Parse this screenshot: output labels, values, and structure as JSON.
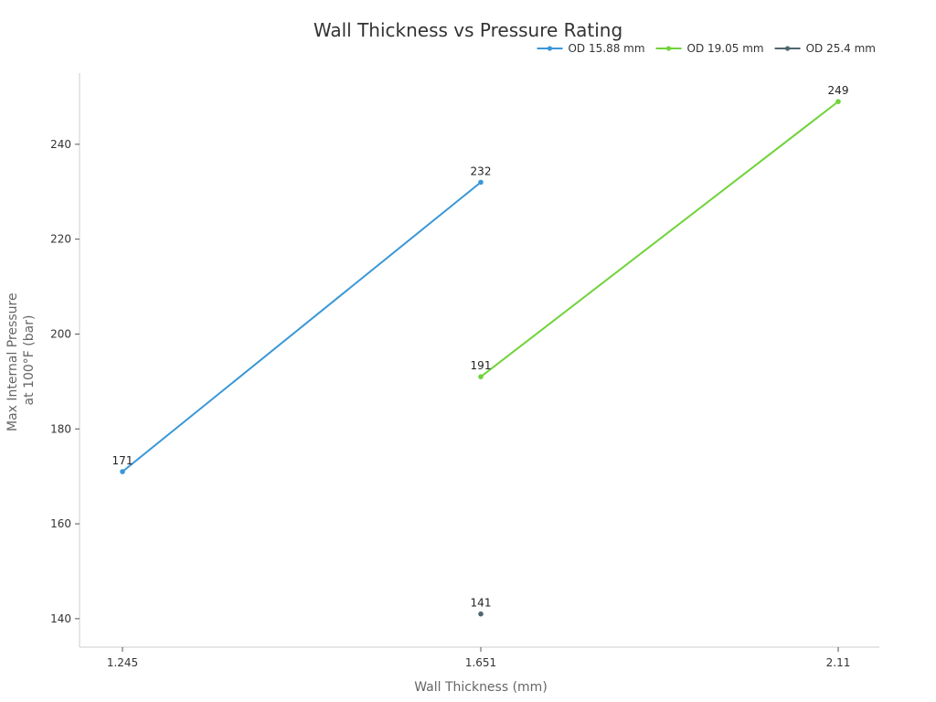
{
  "chart_data": {
    "type": "line",
    "title": "Wall Thickness vs Pressure Rating",
    "xlabel": "Wall Thickness (mm)",
    "ylabel": [
      "Max Internal Pressure",
      "at 100°F (bar)"
    ],
    "categories": [
      "1.245",
      "1.651",
      "2.11"
    ],
    "ylim": [
      134,
      255
    ],
    "yticks": [
      140,
      160,
      180,
      200,
      220,
      240
    ],
    "grid": false,
    "legend_position": "top-right",
    "series": [
      {
        "name": "OD 15.88 mm",
        "color": "#3a97d8",
        "values": [
          171,
          232,
          null
        ]
      },
      {
        "name": "OD 19.05 mm",
        "color": "#6fd33a",
        "values": [
          null,
          191,
          249
        ]
      },
      {
        "name": "OD 25.4 mm",
        "color": "#4f6670",
        "values": [
          null,
          141,
          null
        ]
      }
    ]
  }
}
